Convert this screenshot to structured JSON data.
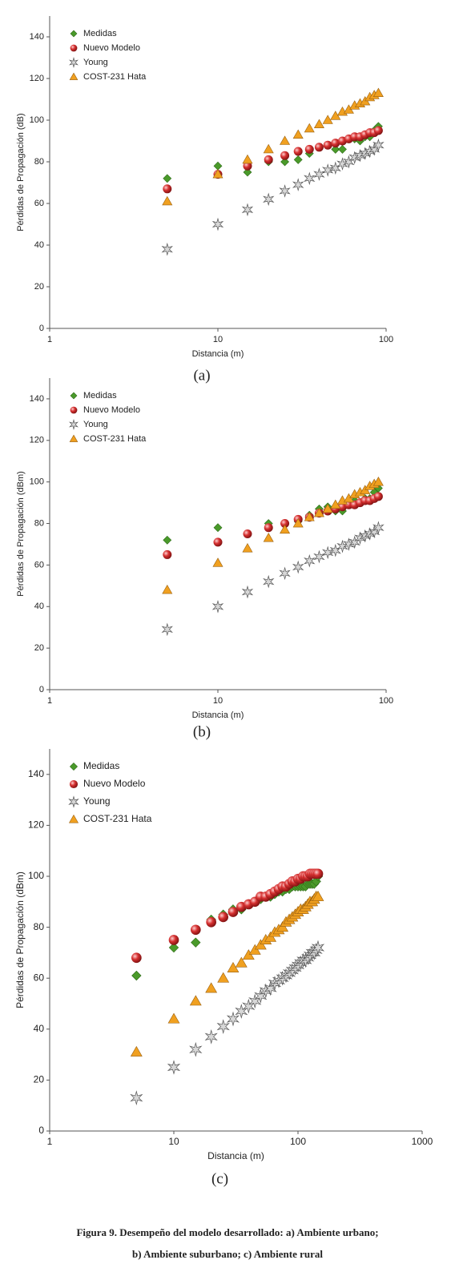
{
  "chart_data": [
    {
      "type": "scatter",
      "subcaption": "(a)",
      "xlabel": "Distancia (m)",
      "ylabel": "Pérdidas de Propagación (dB)",
      "xscale": "log",
      "xlim": [
        1,
        100
      ],
      "xticks": [
        1,
        10,
        100
      ],
      "ylim": [
        0,
        150
      ],
      "yticks": [
        0,
        20,
        40,
        60,
        80,
        100,
        120,
        140
      ],
      "legend": "upper left",
      "x": [
        5,
        10,
        15,
        20,
        25,
        30,
        35,
        40,
        45,
        50,
        55,
        60,
        65,
        70,
        75,
        80,
        85,
        90
      ],
      "series": [
        {
          "name": "Medidas",
          "color": "#4a9a2a",
          "marker": "diamond",
          "values": [
            72,
            78,
            75,
            80,
            80,
            81,
            84,
            87,
            88,
            86,
            86,
            91,
            91,
            90,
            92,
            92,
            95,
            97
          ]
        },
        {
          "name": "Nuevo Modelo",
          "color": "#c62828",
          "marker": "sphere",
          "values": [
            67,
            74,
            78,
            81,
            83,
            85,
            86,
            87,
            88,
            89,
            90,
            91,
            92,
            92,
            93,
            94,
            94,
            95
          ]
        },
        {
          "name": "Young",
          "color": "#8a8a8a",
          "marker": "star",
          "values": [
            38,
            50,
            57,
            62,
            66,
            69,
            72,
            74,
            76,
            77,
            79,
            80,
            82,
            83,
            84,
            85,
            86,
            88
          ]
        },
        {
          "name": "COST-231 Hata",
          "color": "#f0a020",
          "marker": "triangle",
          "values": [
            61,
            74,
            81,
            86,
            90,
            93,
            96,
            98,
            100,
            102,
            104,
            105,
            107,
            108,
            109,
            111,
            112,
            113
          ]
        }
      ]
    },
    {
      "type": "scatter",
      "subcaption": "(b)",
      "xlabel": "Distancia (m)",
      "ylabel": "Pérdidas de Propagación (dBm)",
      "xscale": "log",
      "xlim": [
        1,
        100
      ],
      "xticks": [
        1,
        10,
        100
      ],
      "ylim": [
        0,
        150
      ],
      "yticks": [
        0,
        20,
        40,
        60,
        80,
        100,
        120,
        140
      ],
      "legend": "upper left",
      "x": [
        5,
        10,
        15,
        20,
        25,
        30,
        35,
        40,
        45,
        50,
        55,
        60,
        65,
        70,
        75,
        80,
        85,
        90
      ],
      "series": [
        {
          "name": "Medidas",
          "color": "#4a9a2a",
          "marker": "diamond",
          "values": [
            72,
            78,
            75,
            80,
            80,
            81,
            84,
            87,
            88,
            86,
            86,
            91,
            91,
            90,
            92,
            92,
            95,
            97
          ]
        },
        {
          "name": "Nuevo Modelo",
          "color": "#c62828",
          "marker": "sphere",
          "values": [
            65,
            71,
            75,
            78,
            80,
            82,
            83,
            85,
            86,
            87,
            88,
            89,
            89,
            90,
            91,
            91,
            92,
            93
          ]
        },
        {
          "name": "Young",
          "color": "#8a8a8a",
          "marker": "star",
          "values": [
            29,
            40,
            47,
            52,
            56,
            59,
            62,
            64,
            66,
            67,
            69,
            70,
            71,
            73,
            74,
            75,
            76,
            78
          ]
        },
        {
          "name": "COST-231 Hata",
          "color": "#f0a020",
          "marker": "triangle",
          "values": [
            48,
            61,
            68,
            73,
            77,
            80,
            83,
            85,
            87,
            89,
            91,
            92,
            94,
            95,
            96,
            98,
            99,
            100
          ]
        }
      ]
    },
    {
      "type": "scatter",
      "subcaption": "(c)",
      "xlabel": "Distancia (m)",
      "ylabel": "Pérdidas de Propagación (dBm)",
      "xscale": "log",
      "xlim": [
        1,
        1000
      ],
      "xticks": [
        1,
        10,
        100,
        1000
      ],
      "ylim": [
        0,
        150
      ],
      "yticks": [
        0,
        20,
        40,
        60,
        80,
        100,
        120,
        140
      ],
      "legend": "upper left",
      "x": [
        5,
        10,
        15,
        20,
        25,
        30,
        35,
        40,
        45,
        50,
        55,
        60,
        65,
        70,
        75,
        80,
        85,
        90,
        95,
        100,
        105,
        110,
        115,
        120,
        125,
        130,
        135,
        140,
        145
      ],
      "series": [
        {
          "name": "Medidas",
          "color": "#4a9a2a",
          "marker": "diamond",
          "values": [
            61,
            72,
            74,
            83,
            85,
            87,
            87,
            89,
            90,
            91,
            92,
            92,
            93,
            94,
            94,
            95,
            95,
            96,
            96,
            96,
            96,
            96,
            96,
            97,
            97,
            97,
            97,
            98,
            100
          ]
        },
        {
          "name": "Nuevo Modelo",
          "color": "#c62828",
          "marker": "sphere",
          "values": [
            68,
            75,
            79,
            82,
            84,
            86,
            88,
            89,
            90,
            92,
            92,
            93,
            94,
            95,
            96,
            96,
            97,
            98,
            98,
            99,
            99,
            100,
            100,
            100,
            101,
            101,
            101,
            101,
            101
          ]
        },
        {
          "name": "Young",
          "color": "#8a8a8a",
          "marker": "star",
          "values": [
            13,
            25,
            32,
            37,
            41,
            44,
            47,
            49,
            51,
            53,
            55,
            56,
            58,
            59,
            60,
            61,
            62,
            63,
            64,
            65,
            66,
            67,
            67,
            68,
            69,
            70,
            70,
            71,
            72
          ]
        },
        {
          "name": "COST-231 Hata",
          "color": "#f0a020",
          "marker": "triangle",
          "values": [
            31,
            44,
            51,
            56,
            60,
            64,
            66,
            69,
            71,
            73,
            75,
            76,
            78,
            79,
            80,
            82,
            83,
            84,
            85,
            86,
            87,
            87,
            88,
            89,
            90,
            90,
            91,
            92,
            92
          ]
        }
      ]
    }
  ],
  "figure_caption": [
    "Figura 9. Desempeño del modelo desarrollado: a) Ambiente urbano;",
    "b) Ambiente suburbano; c) Ambiente rural"
  ]
}
